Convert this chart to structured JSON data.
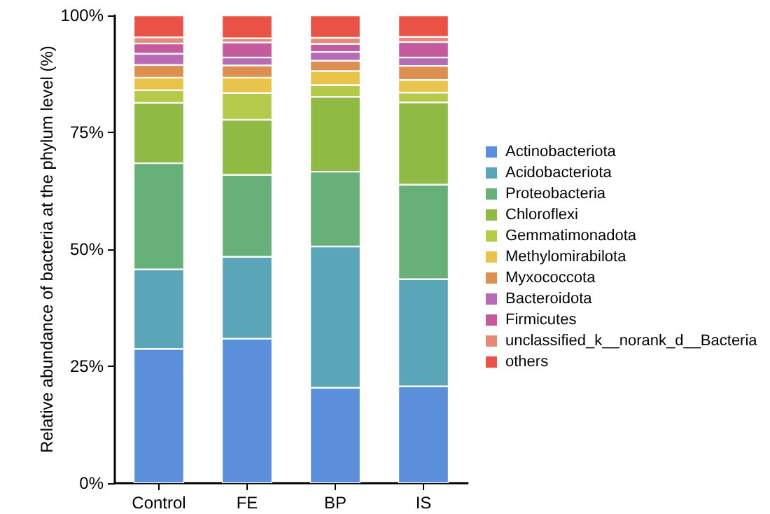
{
  "chart_data": {
    "type": "bar",
    "stacked": true,
    "ylabel": "Relative abundance of bacteria at the phylum level (%)",
    "categories": [
      "Control",
      "FE",
      "BP",
      "IS"
    ],
    "ylim": [
      0,
      100
    ],
    "yticks": [
      {
        "value": 0,
        "label": "0%"
      },
      {
        "value": 25,
        "label": "25%"
      },
      {
        "value": 50,
        "label": "50%"
      },
      {
        "value": 75,
        "label": "75%"
      },
      {
        "value": 100,
        "label": "100%"
      }
    ],
    "grid": false,
    "legend": "right",
    "series": [
      {
        "name": "Actinobacteriota",
        "color": "#5b8fdb",
        "values": [
          28.7,
          30.9,
          20.4,
          20.7
        ]
      },
      {
        "name": "Acidobacteriota",
        "color": "#5ba5b8",
        "values": [
          17.0,
          17.5,
          30.2,
          22.9
        ]
      },
      {
        "name": "Proteobacteria",
        "color": "#68b07a",
        "values": [
          22.7,
          17.5,
          16.0,
          20.2
        ]
      },
      {
        "name": "Chloroflexi",
        "color": "#8fbb45",
        "values": [
          12.9,
          11.8,
          16.0,
          17.6
        ]
      },
      {
        "name": "Gemmatimonadota",
        "color": "#b5c94a",
        "values": [
          2.7,
          5.7,
          2.5,
          2.1
        ]
      },
      {
        "name": "Methylomirabilota",
        "color": "#e8c44a",
        "values": [
          2.7,
          3.3,
          3.0,
          2.7
        ]
      },
      {
        "name": "Myxococcota",
        "color": "#dc8f4f",
        "values": [
          2.7,
          2.6,
          2.2,
          3.0
        ]
      },
      {
        "name": "Bacteroidota",
        "color": "#b86bb5",
        "values": [
          2.4,
          1.7,
          1.9,
          1.8
        ]
      },
      {
        "name": "Firmicutes",
        "color": "#c55a9f",
        "values": [
          2.2,
          3.2,
          1.7,
          3.3
        ]
      },
      {
        "name": "unclassified_k__norank_d__Bacteria",
        "color": "#e58a76",
        "values": [
          1.3,
          0.9,
          1.3,
          1.1
        ]
      },
      {
        "name": "others",
        "color": "#e95244",
        "values": [
          4.7,
          4.9,
          4.8,
          4.6
        ]
      }
    ]
  }
}
